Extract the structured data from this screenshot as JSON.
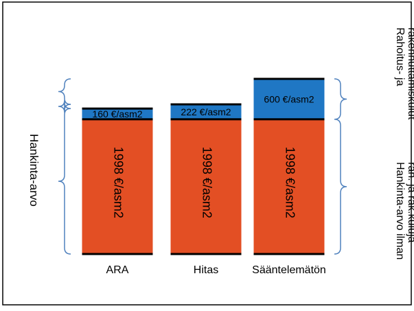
{
  "chart_data": {
    "type": "bar",
    "stacked": true,
    "categories": [
      "ARA",
      "Hitas",
      "Sääntelemätön"
    ],
    "series": [
      {
        "name": "Hankinta-arvo ilman rah. ja rak.kuluja",
        "values": [
          1998,
          1998,
          1998
        ],
        "labels": [
          "1998 €/asm2",
          "1998 €/asm2",
          "1998 €/asm2"
        ],
        "color": "#e34f24"
      },
      {
        "name": "Rahoitus- ja rakennuttamiskulut",
        "values": [
          160,
          222,
          600
        ],
        "labels": [
          "160 €/asm2",
          "222 €/asm2",
          "600 €/asm2"
        ],
        "color": "#1f77c4"
      }
    ],
    "left_label": "Hankinta-arvo",
    "right_labels": {
      "top": "Rahoitus- ja rakennuttamiskulut",
      "bottom": "Hankinta-arvo ilman rah. ja rak.kuluja"
    },
    "brace_color": "#4f81bd",
    "grid": false,
    "legend": "none"
  }
}
